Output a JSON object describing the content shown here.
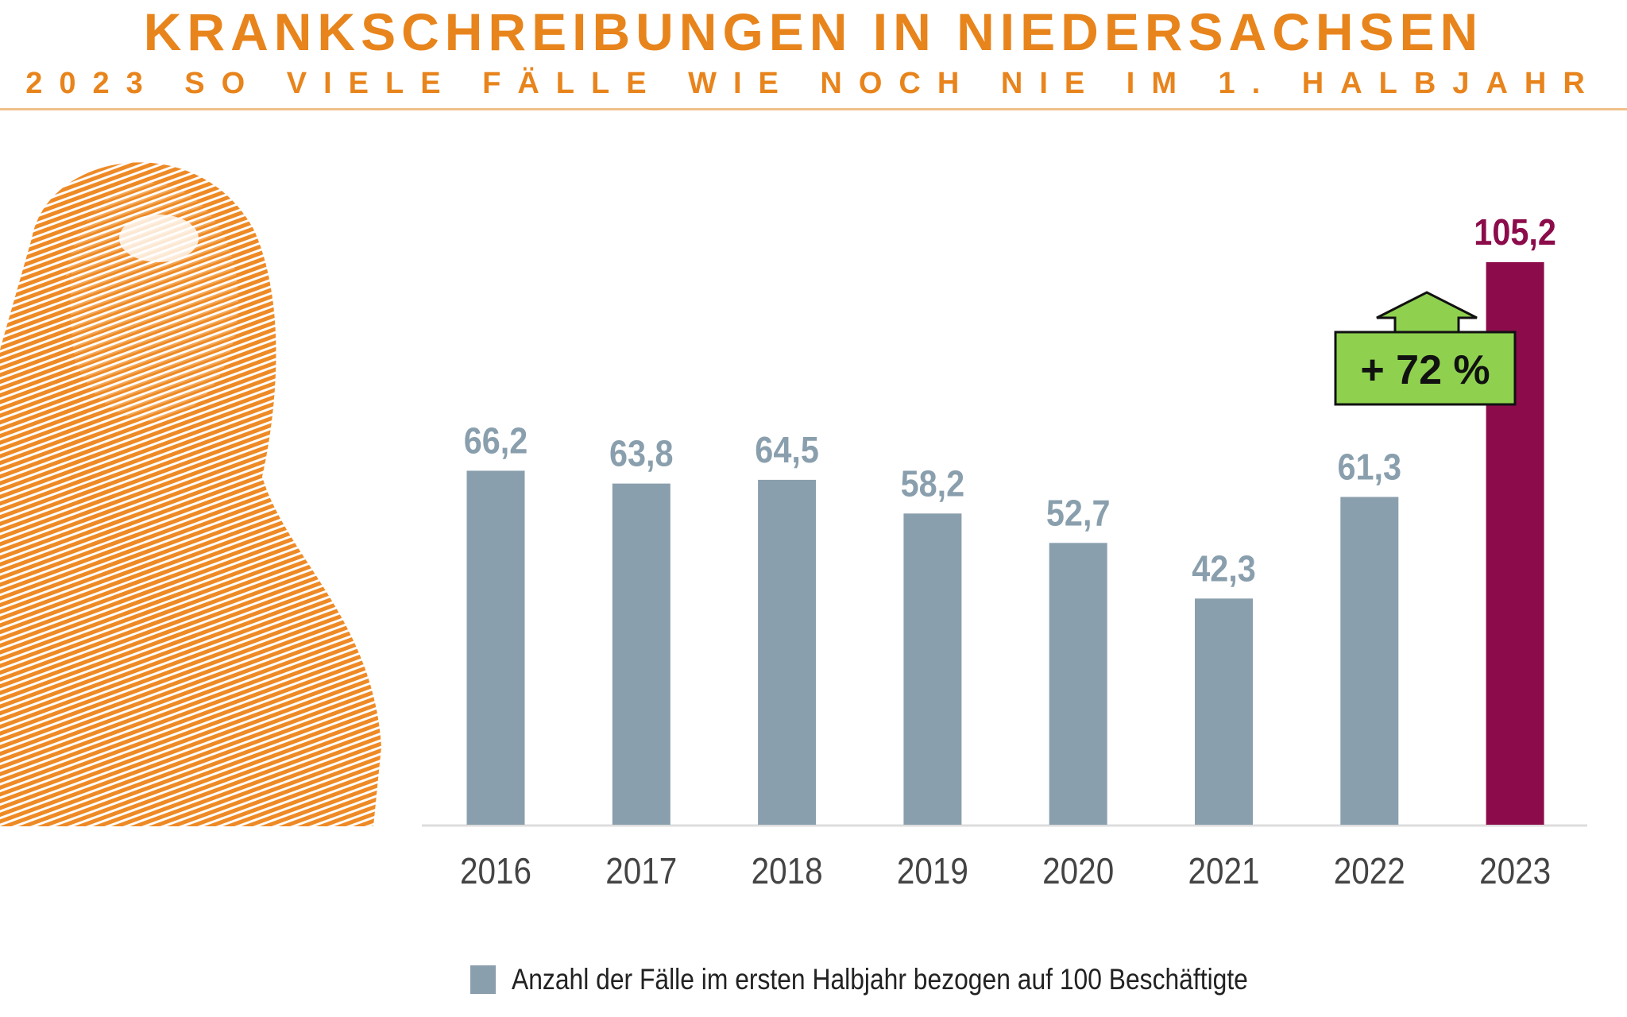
{
  "header": {
    "title": "KRANKSCHREIBUNGEN IN NIEDERSACHSEN",
    "subtitle": "2023 SO VIELE FÄLLE WIE NOCH NIE IM 1. HALBJAHR"
  },
  "colors": {
    "accent": "#e8841c",
    "bar": "#8a9fad",
    "highlight": "#8c0c4b",
    "callout": "#8fd14f",
    "label": "#8a9fad"
  },
  "chart_data": {
    "type": "bar",
    "title": "KRANKSCHREIBUNGEN IN NIEDERSACHSEN",
    "subtitle": "2023 SO VIELE FÄLLE WIE NOCH NIE IM 1. HALBJAHR",
    "categories": [
      "2016",
      "2017",
      "2018",
      "2019",
      "2020",
      "2021",
      "2022",
      "2023"
    ],
    "values": [
      66.2,
      63.8,
      64.5,
      58.2,
      52.7,
      42.3,
      61.3,
      105.2
    ],
    "value_labels": [
      "66,2",
      "63,8",
      "64,5",
      "58,2",
      "52,7",
      "42,3",
      "61,3",
      "105,2"
    ],
    "highlight_index": 7,
    "ylim": [
      0,
      105.2
    ],
    "grid": false,
    "legend": {
      "label": "Anzahl der Fälle im ersten Halbjahr bezogen auf 100 Beschäftigte",
      "placement": "bottom"
    },
    "annotation": {
      "text": "+ 72 %",
      "target": "2023"
    }
  }
}
